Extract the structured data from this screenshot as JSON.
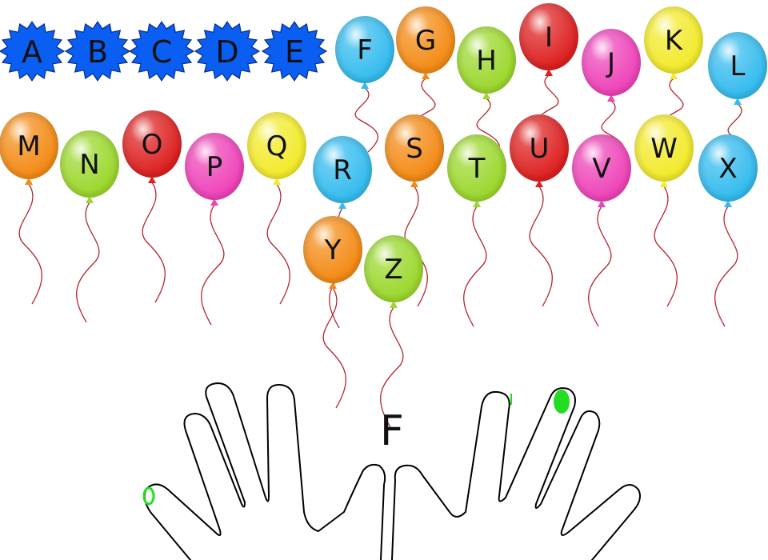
{
  "game": {
    "type": "typing-tutor",
    "target_letter": "F",
    "popped_letters": [
      "A",
      "B",
      "C",
      "D",
      "E"
    ],
    "popped_color": "#0b5ef2",
    "highlight_color": "#22dd22"
  },
  "rows": [
    [
      {
        "letter": "F",
        "color": "#33bbee"
      },
      {
        "letter": "G",
        "color": "#f38a14"
      },
      {
        "letter": "H",
        "color": "#9bd72c"
      },
      {
        "letter": "I",
        "color": "#dd1f1f"
      },
      {
        "letter": "J",
        "color": "#ee42b8"
      },
      {
        "letter": "K",
        "color": "#f2ea2a"
      },
      {
        "letter": "L",
        "color": "#33bbee"
      }
    ],
    [
      {
        "letter": "M",
        "color": "#f38a14"
      },
      {
        "letter": "N",
        "color": "#9bd72c"
      },
      {
        "letter": "O",
        "color": "#dd1f1f"
      },
      {
        "letter": "P",
        "color": "#ee42b8"
      },
      {
        "letter": "Q",
        "color": "#f2ea2a"
      },
      {
        "letter": "R",
        "color": "#33bbee"
      },
      {
        "letter": "S",
        "color": "#f38a14"
      },
      {
        "letter": "T",
        "color": "#9bd72c"
      },
      {
        "letter": "U",
        "color": "#dd1f1f"
      },
      {
        "letter": "V",
        "color": "#ee42b8"
      },
      {
        "letter": "W",
        "color": "#f2ea2a"
      },
      {
        "letter": "X",
        "color": "#33bbee"
      }
    ],
    [
      {
        "letter": "Y",
        "color": "#f38a14"
      },
      {
        "letter": "Z",
        "color": "#9bd72c"
      }
    ]
  ]
}
